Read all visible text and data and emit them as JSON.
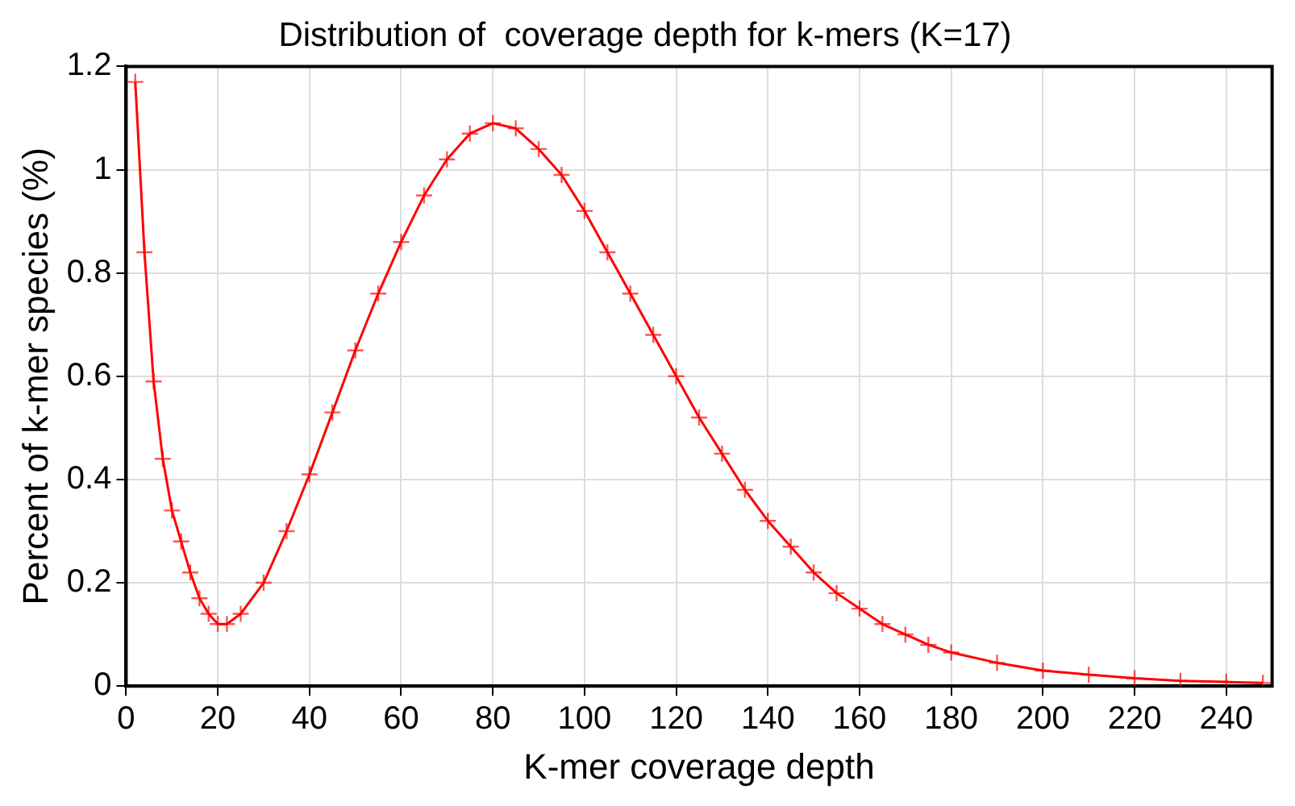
{
  "chart_data": {
    "type": "line",
    "title": "Distribution of  coverage depth for k-mers (K=17)",
    "xlabel": "K-mer coverage depth",
    "ylabel": "Percent of k-mer species (%)",
    "xlim": [
      0,
      250
    ],
    "xticks": [
      0,
      20,
      40,
      60,
      80,
      100,
      120,
      140,
      160,
      180,
      200,
      220,
      240
    ],
    "ylim": [
      0,
      1.2
    ],
    "yticks": [
      0,
      0.2,
      0.4,
      0.6,
      0.8,
      1,
      1.2
    ],
    "grid": true,
    "marker": "cross",
    "line_style": "solid",
    "series": [
      {
        "color": "#ff0000",
        "x": [
          2,
          4,
          6,
          8,
          10,
          12,
          14,
          16,
          18,
          20,
          22,
          25,
          30,
          35,
          40,
          45,
          50,
          55,
          60,
          65,
          70,
          75,
          80,
          85,
          90,
          95,
          100,
          105,
          110,
          115,
          120,
          125,
          130,
          135,
          140,
          145,
          150,
          155,
          160,
          165,
          170,
          175,
          180,
          190,
          200,
          210,
          220,
          230,
          240,
          248
        ],
        "values": [
          1.17,
          0.84,
          0.59,
          0.44,
          0.34,
          0.28,
          0.22,
          0.17,
          0.14,
          0.12,
          0.12,
          0.14,
          0.2,
          0.3,
          0.41,
          0.53,
          0.65,
          0.76,
          0.86,
          0.95,
          1.02,
          1.07,
          1.09,
          1.08,
          1.04,
          0.99,
          0.92,
          0.84,
          0.76,
          0.68,
          0.6,
          0.52,
          0.45,
          0.38,
          0.32,
          0.27,
          0.22,
          0.18,
          0.15,
          0.12,
          0.1,
          0.08,
          0.065,
          0.045,
          0.03,
          0.022,
          0.015,
          0.01,
          0.008,
          0.006
        ]
      }
    ]
  }
}
